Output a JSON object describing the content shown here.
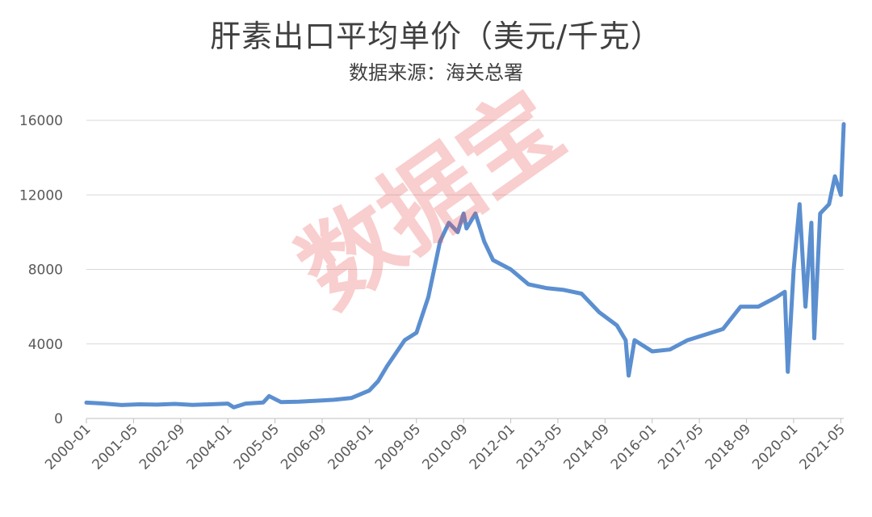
{
  "chart_data": {
    "type": "line",
    "title": "肝素出口平均单价（美元/千克）",
    "subtitle": "数据来源：海关总署",
    "ylim": [
      0,
      16000
    ],
    "yticks": [
      0,
      4000,
      8000,
      12000,
      16000
    ],
    "xtick_labels": [
      "2000-01",
      "2001-05",
      "2002-09",
      "2004-01",
      "2005-05",
      "2006-09",
      "2008-01",
      "2009-05",
      "2010-09",
      "2012-01",
      "2013-05",
      "2014-09",
      "2016-01",
      "2017-05",
      "2018-09",
      "2020-01",
      "2021-05"
    ],
    "grid": true,
    "line_color": "#5b8fd0",
    "watermark": "数据宝",
    "series": [
      {
        "x": [
          "2000-01",
          "2000-07",
          "2001-01",
          "2001-07",
          "2002-01",
          "2002-07",
          "2003-01",
          "2003-07",
          "2004-01",
          "2004-03",
          "2004-07",
          "2005-01",
          "2005-03",
          "2005-07",
          "2006-01",
          "2006-07",
          "2007-01",
          "2007-07",
          "2008-01",
          "2008-04",
          "2008-07",
          "2009-01",
          "2009-05",
          "2009-09",
          "2010-01",
          "2010-04",
          "2010-07",
          "2010-09",
          "2010-10",
          "2011-01",
          "2011-04",
          "2011-07",
          "2012-01",
          "2012-07",
          "2013-01",
          "2013-07",
          "2014-01",
          "2014-07",
          "2015-01",
          "2015-04",
          "2015-05",
          "2015-07",
          "2016-01",
          "2016-07",
          "2017-01",
          "2017-07",
          "2018-01",
          "2018-07",
          "2019-01",
          "2019-07",
          "2019-10",
          "2019-11",
          "2020-01",
          "2020-03",
          "2020-05",
          "2020-07",
          "2020-08",
          "2020-10",
          "2021-01",
          "2021-03",
          "2021-05",
          "2021-06"
        ],
        "y": [
          850,
          800,
          720,
          760,
          740,
          780,
          730,
          760,
          800,
          600,
          800,
          860,
          1200,
          880,
          900,
          950,
          1000,
          1100,
          1500,
          2000,
          2800,
          4200,
          4600,
          6500,
          9500,
          10500,
          10000,
          11000,
          10200,
          11000,
          9500,
          8500,
          8000,
          7200,
          7000,
          6900,
          6700,
          5700,
          5000,
          4200,
          2300,
          4200,
          3600,
          3700,
          4200,
          4500,
          4800,
          6000,
          6000,
          6500,
          6800,
          2500,
          8000,
          11500,
          6000,
          10500,
          4300,
          11000,
          11500,
          13000,
          12000,
          15800
        ]
      }
    ]
  }
}
